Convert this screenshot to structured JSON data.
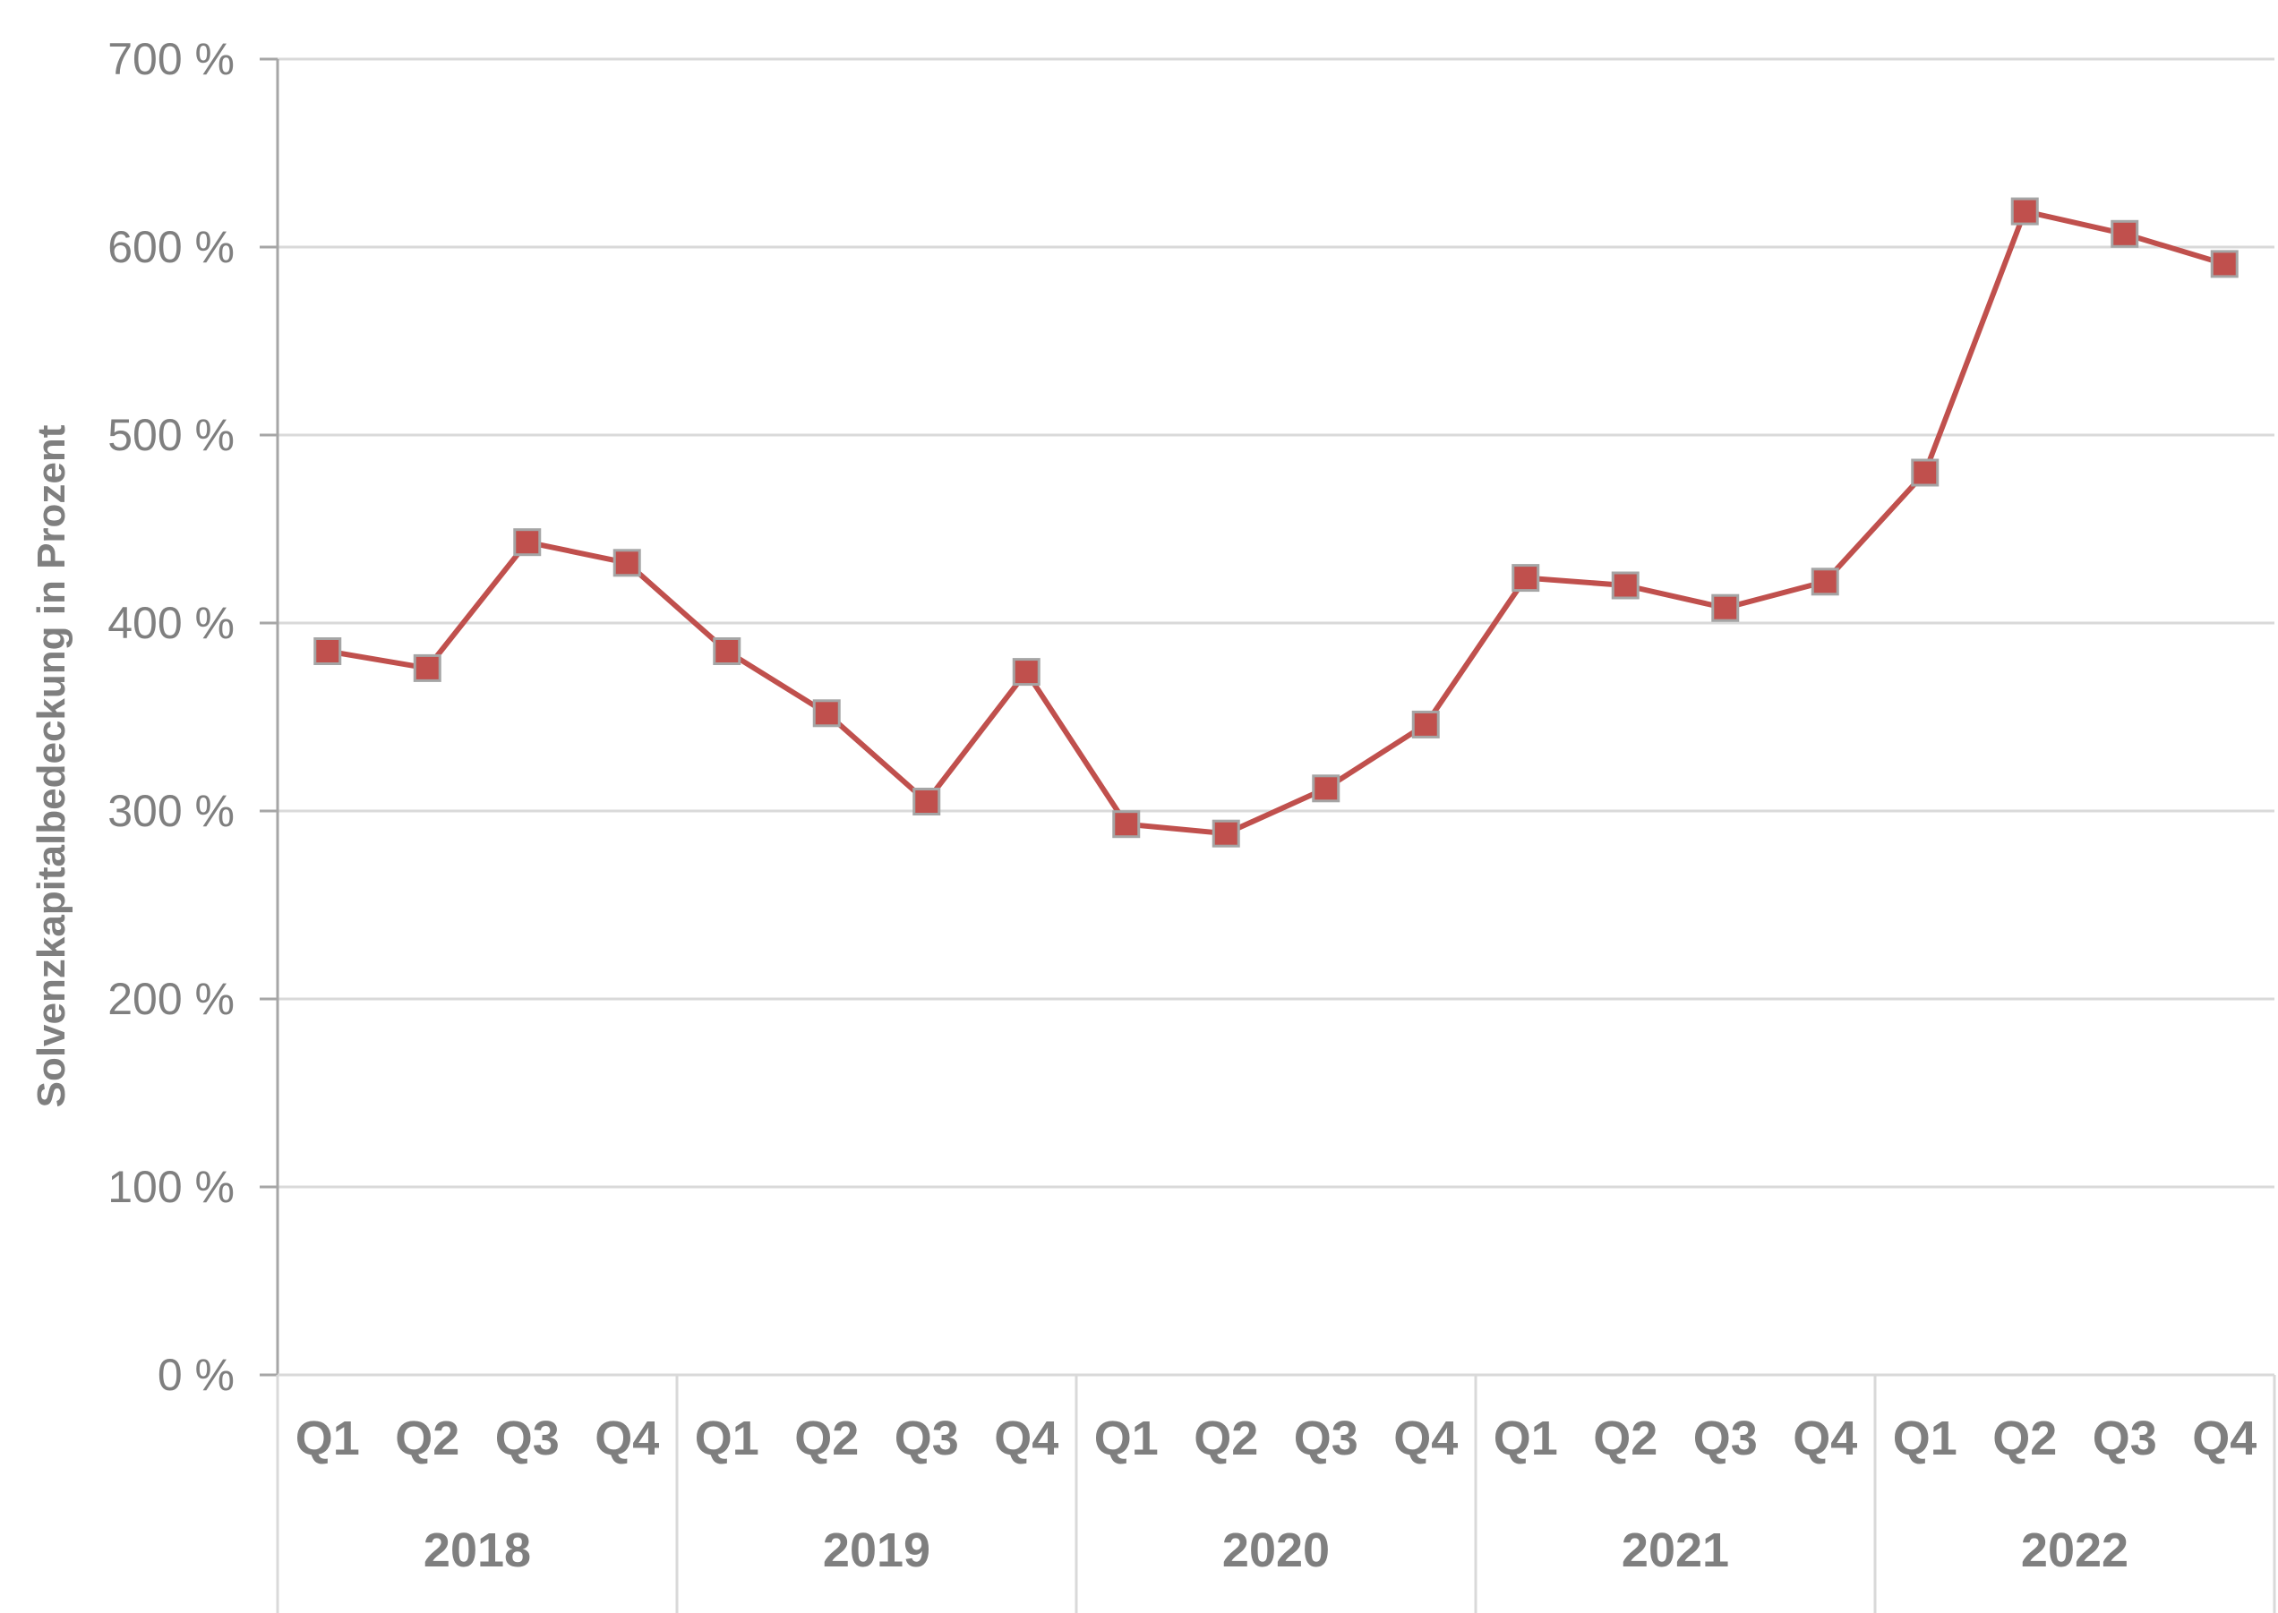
{
  "chart_data": {
    "type": "line",
    "xlabel": "",
    "ylabel": "Solvenzkapitalbedeckung in Prozent",
    "ylim": [
      0,
      700
    ],
    "yticks": [
      0,
      100,
      200,
      300,
      400,
      500,
      600,
      700
    ],
    "ytick_suffix": " %",
    "grid": "horizontal",
    "legend": "none",
    "colors": {
      "line": "#c0504d",
      "marker": "#c0504d",
      "marker_border": "#a5a5a5",
      "grid": "#d9d9d9",
      "axis": "#a6a6a6",
      "text": "#7f7f7f"
    },
    "marker": "square",
    "years": [
      "2018",
      "2019",
      "2020",
      "2021",
      "2022"
    ],
    "quarters": [
      "Q1",
      "Q2",
      "Q3",
      "Q4"
    ],
    "categories": [
      "Q1 2018",
      "Q2 2018",
      "Q3 2018",
      "Q4 2018",
      "Q1 2019",
      "Q2 2019",
      "Q3 2019",
      "Q4 2019",
      "Q1 2020",
      "Q2 2020",
      "Q3 2020",
      "Q4 2020",
      "Q1 2021",
      "Q2 2021",
      "Q3 2021",
      "Q4 2021",
      "Q1 2022",
      "Q2 2022",
      "Q3 2022",
      "Q4 2022"
    ],
    "series": [
      {
        "values": [
          385,
          376,
          443,
          432,
          385,
          352,
          305,
          374,
          293,
          288,
          312,
          346,
          424,
          420,
          408,
          422,
          480,
          619,
          607,
          591
        ]
      }
    ]
  }
}
